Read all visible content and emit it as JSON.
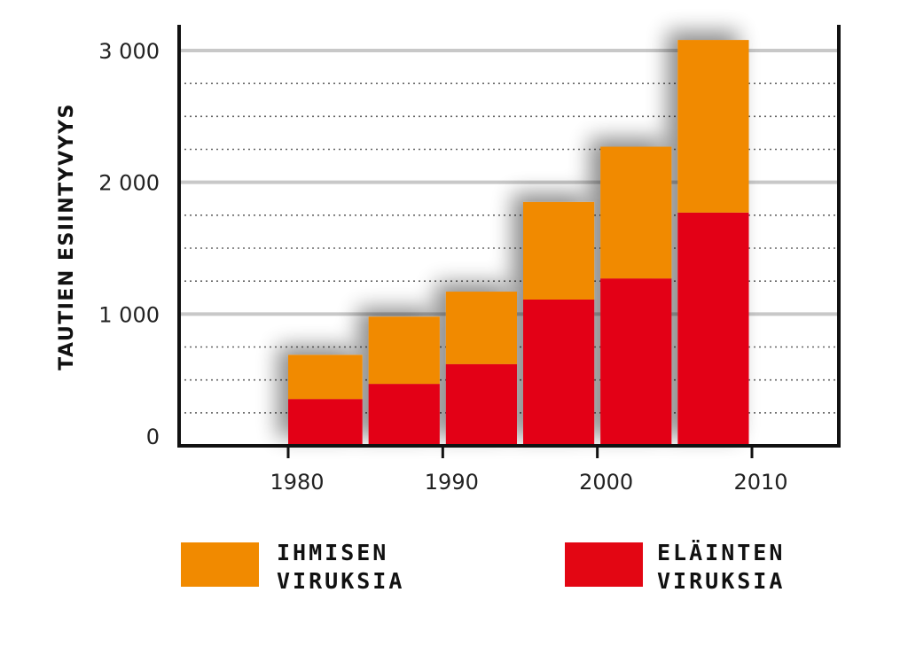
{
  "chart_data": {
    "type": "bar",
    "stacked": true,
    "ylabel": "TAUTIEN ESIINTYVYYS",
    "ylim": [
      0,
      3000
    ],
    "y_ticks": [
      0,
      1000,
      2000,
      3000
    ],
    "y_tick_labels": [
      "0",
      "1 000",
      "2 000",
      "3 000"
    ],
    "x_ticks": [
      1980,
      1990,
      2000,
      2010
    ],
    "x_tick_labels": [
      "1980",
      "1990",
      "2000",
      "2010"
    ],
    "xlim": [
      1973,
      2016
    ],
    "bars": [
      {
        "x_start": 1980,
        "x_end": 1985
      },
      {
        "x_start": 1985,
        "x_end": 1990
      },
      {
        "x_start": 1990,
        "x_end": 1995
      },
      {
        "x_start": 1995,
        "x_end": 2000
      },
      {
        "x_start": 2000,
        "x_end": 2005
      },
      {
        "x_start": 2005,
        "x_end": 2010
      }
    ],
    "series": [
      {
        "name": "ELÄINTEN VIRUKSIA",
        "name_lines": [
          "ELÄINTEN",
          "VIRUKSIA"
        ],
        "color": "#e30613",
        "values": [
          355,
          470,
          620,
          1110,
          1270,
          1770
        ]
      },
      {
        "name": "IHMISEN VIRUKSIA",
        "name_lines": [
          "IHMISEN",
          "VIRUKSIA"
        ],
        "color": "#f18a00",
        "values": [
          335,
          510,
          550,
          740,
          1000,
          1310
        ]
      }
    ],
    "grid": true,
    "legend": "bottom"
  }
}
